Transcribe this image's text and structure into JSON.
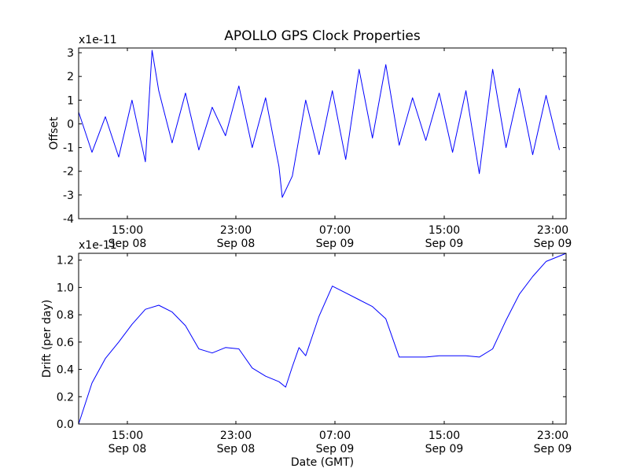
{
  "title": "APOLLO GPS Clock Properties",
  "xlabel": "Date (GMT)",
  "colors": {
    "line": "#0000ff",
    "axes": "#000000",
    "background": "#ffffff"
  },
  "x_ticks": [
    {
      "time": "15:00",
      "date": "Sep 08"
    },
    {
      "time": "23:00",
      "date": "Sep 08"
    },
    {
      "time": "07:00",
      "date": "Sep 09"
    },
    {
      "time": "15:00",
      "date": "Sep 09"
    },
    {
      "time": "23:00",
      "date": "Sep 09"
    }
  ],
  "chart_data": [
    {
      "type": "line",
      "title": "APOLLO GPS Clock Properties",
      "ylabel": "Offset",
      "y_scale_label": "x1e-11",
      "ylim": [
        -4,
        3.2
      ],
      "y_ticks": [
        "-4",
        "-3",
        "-2",
        "-1",
        "0",
        "1",
        "2",
        "3"
      ],
      "y_tick_values": [
        -4,
        -3,
        -2,
        -1,
        0,
        1,
        2,
        3
      ],
      "xlim": [
        "Sep 08 12:00",
        "Sep 10 00:30"
      ],
      "x_ticks": [
        "Sep 08 15:00",
        "Sep 08 23:00",
        "Sep 09 07:00",
        "Sep 09 15:00",
        "Sep 09 23:00"
      ],
      "grid": false,
      "x": [
        "Sep 08 12:00",
        "Sep 08 13:00",
        "Sep 08 14:00",
        "Sep 08 15:00",
        "Sep 08 16:00",
        "Sep 08 17:00",
        "Sep 08 17:30",
        "Sep 08 18:00",
        "Sep 08 19:00",
        "Sep 08 20:00",
        "Sep 08 21:00",
        "Sep 08 22:00",
        "Sep 08 23:00",
        "Sep 09 00:00",
        "Sep 09 01:00",
        "Sep 09 02:00",
        "Sep 09 03:00",
        "Sep 09 03:15",
        "Sep 09 04:00",
        "Sep 09 05:00",
        "Sep 09 06:00",
        "Sep 09 07:00",
        "Sep 09 08:00",
        "Sep 09 09:00",
        "Sep 09 10:00",
        "Sep 09 11:00",
        "Sep 09 12:00",
        "Sep 09 13:00",
        "Sep 09 14:00",
        "Sep 09 15:00",
        "Sep 09 16:00",
        "Sep 09 17:00",
        "Sep 09 18:00",
        "Sep 09 19:00",
        "Sep 09 20:00",
        "Sep 09 21:00",
        "Sep 09 22:00",
        "Sep 09 23:00",
        "Sep 10 00:00"
      ],
      "series": [
        {
          "values": [
            0.5,
            -1.2,
            0.3,
            -1.4,
            1.0,
            -1.6,
            3.1,
            1.4,
            -0.8,
            1.3,
            -1.1,
            0.7,
            -0.5,
            1.6,
            -1.0,
            1.1,
            -1.8,
            -3.1,
            -2.2,
            1.0,
            -1.3,
            1.4,
            -1.5,
            2.3,
            -0.6,
            2.5,
            -0.9,
            1.1,
            -0.7,
            1.3,
            -1.2,
            1.4,
            -2.1,
            2.3,
            -1.0,
            1.5,
            -1.3,
            1.2,
            -1.1
          ]
        }
      ]
    },
    {
      "type": "line",
      "ylabel": "Drift (per day)",
      "y_scale_label": "x1e-11",
      "ylim": [
        0.0,
        1.25
      ],
      "y_ticks": [
        "0.0",
        "0.2",
        "0.4",
        "0.6",
        "0.8",
        "1.0",
        "1.2"
      ],
      "y_tick_values": [
        0,
        0.2,
        0.4,
        0.6,
        0.8,
        1.0,
        1.2
      ],
      "xlim": [
        "Sep 08 12:00",
        "Sep 10 00:30"
      ],
      "x_ticks": [
        "Sep 08 15:00",
        "Sep 08 23:00",
        "Sep 09 07:00",
        "Sep 09 15:00",
        "Sep 09 23:00"
      ],
      "grid": false,
      "x": [
        "Sep 08 12:00",
        "Sep 08 13:00",
        "Sep 08 14:00",
        "Sep 08 15:00",
        "Sep 08 16:00",
        "Sep 08 17:00",
        "Sep 08 18:00",
        "Sep 08 19:00",
        "Sep 08 20:00",
        "Sep 08 21:00",
        "Sep 08 22:00",
        "Sep 08 23:00",
        "Sep 09 00:00",
        "Sep 09 01:00",
        "Sep 09 02:00",
        "Sep 09 03:00",
        "Sep 09 03:30",
        "Sep 09 04:00",
        "Sep 09 04:30",
        "Sep 09 05:00",
        "Sep 09 06:00",
        "Sep 09 07:00",
        "Sep 09 08:00",
        "Sep 09 09:00",
        "Sep 09 10:00",
        "Sep 09 11:00",
        "Sep 09 12:00",
        "Sep 09 13:00",
        "Sep 09 14:00",
        "Sep 09 15:00",
        "Sep 09 16:00",
        "Sep 09 17:00",
        "Sep 09 18:00",
        "Sep 09 19:00",
        "Sep 09 20:00",
        "Sep 09 21:00",
        "Sep 09 22:00",
        "Sep 09 23:00",
        "Sep 10 00:00",
        "Sep 10 00:30"
      ],
      "series": [
        {
          "values": [
            0.0,
            0.3,
            0.48,
            0.6,
            0.73,
            0.84,
            0.87,
            0.82,
            0.72,
            0.55,
            0.52,
            0.56,
            0.55,
            0.41,
            0.35,
            0.31,
            0.27,
            0.42,
            0.56,
            0.5,
            0.79,
            1.01,
            0.96,
            0.91,
            0.86,
            0.77,
            0.49,
            0.49,
            0.49,
            0.5,
            0.5,
            0.5,
            0.49,
            0.55,
            0.76,
            0.95,
            1.08,
            1.19,
            1.23,
            1.25
          ]
        }
      ]
    }
  ]
}
